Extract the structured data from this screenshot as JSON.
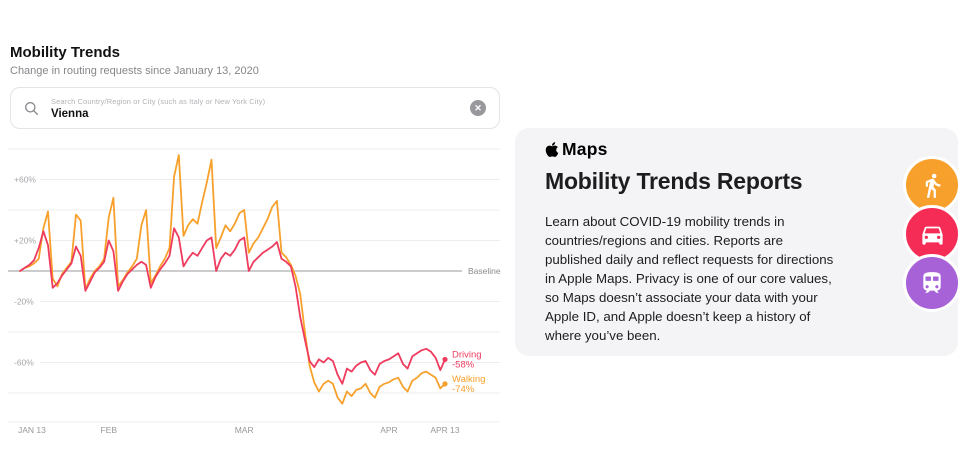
{
  "left": {
    "title": "Mobility Trends",
    "subtitle": "Change in routing requests since January 13, 2020",
    "search": {
      "placeholder": "Search Country/Region or City (such as Italy or New York City)",
      "value": "Vienna",
      "clear_glyph": "✕",
      "icons": [
        "search-icon",
        "clear-circle-icon"
      ]
    }
  },
  "chart_data": {
    "type": "line",
    "title": "Change in routing requests since January 13, 2020",
    "x_unit": "days since Jan 13, 2020 (day 0 = JAN 13, day 91 = APR 13)",
    "baseline_label": "Baseline",
    "grid": true,
    "legend_position": "line-end-labels",
    "ylim": [
      -100,
      85
    ],
    "y_grid_unlabeled": [
      80,
      40,
      -40,
      -80
    ],
    "y_ticks": [
      {
        "v": 60,
        "label": "+60%"
      },
      {
        "v": 20,
        "label": "+20%"
      },
      {
        "v": -20,
        "label": "-20%"
      },
      {
        "v": -60,
        "label": "-60%"
      }
    ],
    "x_ticks": [
      {
        "day": 0,
        "label": "JAN 13",
        "anchor": "start"
      },
      {
        "day": 19,
        "label": "FEB",
        "anchor": "middle"
      },
      {
        "day": 48,
        "label": "MAR",
        "anchor": "middle"
      },
      {
        "day": 79,
        "label": "APR",
        "anchor": "middle"
      },
      {
        "day": 91,
        "label": "APR 13",
        "anchor": "middle"
      }
    ],
    "series": [
      {
        "name": "Walking",
        "color": "#F7A12C",
        "end_label": "Walking",
        "end_value_label": "-74%",
        "values": [
          0,
          2,
          3,
          5,
          8,
          28,
          39,
          -5,
          -10,
          -2,
          2,
          6,
          37,
          33,
          -12,
          -5,
          0,
          3,
          8,
          35,
          48,
          -10,
          -6,
          -1,
          3,
          8,
          30,
          40,
          -8,
          -3,
          3,
          8,
          15,
          62,
          76,
          23,
          30,
          34,
          31,
          45,
          58,
          73,
          15,
          22,
          30,
          26,
          31,
          38,
          40,
          12,
          18,
          22,
          28,
          34,
          42,
          46,
          12,
          9,
          4,
          -3,
          -15,
          -40,
          -62,
          -73,
          -79,
          -74,
          -72,
          -74,
          -83,
          -87,
          -79,
          -82,
          -78,
          -77,
          -74,
          -80,
          -83,
          -76,
          -74,
          -73,
          -71,
          -70,
          -76,
          -79,
          -72,
          -70,
          -67,
          -66,
          -68,
          -70,
          -77,
          -74
        ]
      },
      {
        "name": "Driving",
        "color": "#EE3B5E",
        "end_label": "Driving",
        "end_value_label": "-58%",
        "values": [
          0,
          2,
          4,
          7,
          15,
          26,
          17,
          -11,
          -8,
          -3,
          1,
          5,
          16,
          10,
          -13,
          -7,
          -1,
          2,
          6,
          20,
          13,
          -13,
          -7,
          -2,
          1,
          4,
          6,
          4,
          -11,
          -4,
          1,
          5,
          10,
          28,
          22,
          3,
          8,
          12,
          10,
          15,
          20,
          22,
          0,
          8,
          12,
          10,
          14,
          20,
          22,
          0,
          6,
          9,
          12,
          14,
          16,
          19,
          8,
          6,
          3,
          -10,
          -30,
          -45,
          -59,
          -63,
          -58,
          -60,
          -57,
          -59,
          -68,
          -74,
          -64,
          -66,
          -62,
          -60,
          -59,
          -65,
          -68,
          -61,
          -59,
          -58,
          -56,
          -54,
          -61,
          -64,
          -56,
          -54,
          -52,
          -51,
          -53,
          -57,
          -65,
          -58
        ]
      }
    ]
  },
  "panel": {
    "logo_icon": "apple-logo-icon",
    "logo_text": "Maps",
    "heading": "Mobility Trends Reports",
    "body": "Learn about COVID-19 mobility trends in\ncountries/regions and cities. Reports are\npublished daily and reflect requests for directions\nin Apple Maps. Privacy is one of our core values,\nso Maps doesn’t associate your data with your\nApple ID, and Apple doesn’t keep a history of\nwhere you’ve been.",
    "badges": [
      {
        "icon": "walking-icon",
        "color": "#F7A02B"
      },
      {
        "icon": "driving-icon",
        "color": "#F52D56"
      },
      {
        "icon": "transit-icon",
        "color": "#A862D8"
      }
    ]
  }
}
